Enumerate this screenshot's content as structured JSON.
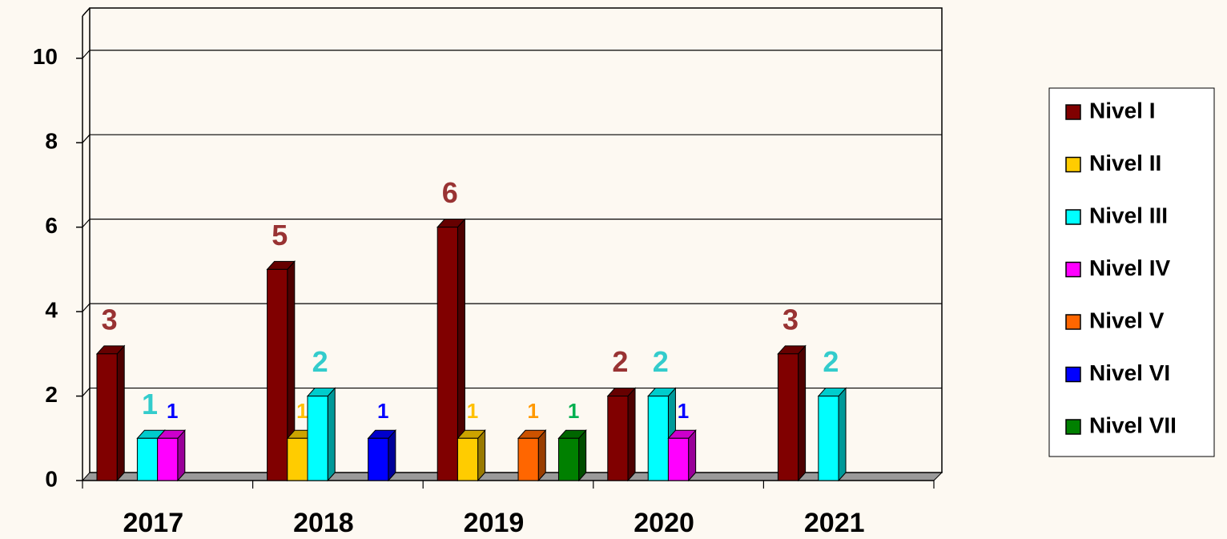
{
  "chart_data": {
    "type": "bar3d",
    "categories": [
      "2017",
      "2018",
      "2019",
      "2020",
      "2021"
    ],
    "series": [
      {
        "name": "Nivel I",
        "color": "#800000",
        "label_color": "#993333",
        "values": [
          3,
          5,
          6,
          2,
          3
        ]
      },
      {
        "name": "Nivel II",
        "color": "#FFCC00",
        "label_color": "#FFC000",
        "values": [
          null,
          1,
          1,
          null,
          null
        ]
      },
      {
        "name": "Nivel III",
        "color": "#00FFFF",
        "label_color": "#33CCCC",
        "values": [
          1,
          2,
          null,
          2,
          2
        ]
      },
      {
        "name": "Nivel IV",
        "color": "#FF00FF",
        "label_color": "#0000FF",
        "values": [
          1,
          null,
          null,
          1,
          null
        ]
      },
      {
        "name": "Nivel V",
        "color": "#FF6600",
        "label_color": "#FF9900",
        "values": [
          null,
          null,
          1,
          null,
          null
        ]
      },
      {
        "name": "Nivel VI",
        "color": "#0000FF",
        "label_color": "#0000FF",
        "values": [
          null,
          1,
          null,
          null,
          null
        ]
      },
      {
        "name": "Nivel VII",
        "color": "#008000",
        "label_color": "#00B050",
        "values": [
          null,
          null,
          1,
          null,
          null
        ]
      }
    ],
    "ylim": [
      0,
      11
    ],
    "yticks": [
      0,
      2,
      4,
      6,
      8,
      10
    ],
    "grid": true,
    "legend": "right"
  }
}
